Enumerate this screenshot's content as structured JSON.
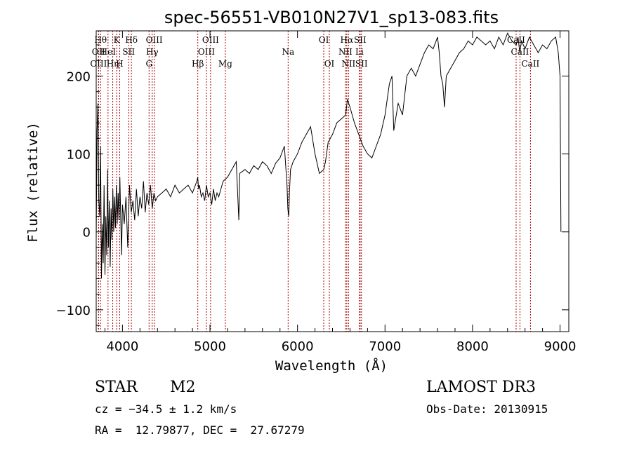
{
  "chart_data": {
    "type": "line",
    "title": "spec-56551-VB010N27V1_sp13-083.fits",
    "xlabel": "Wavelength (Å)",
    "ylabel": "Flux (relative)",
    "xlim": [
      3700,
      9100
    ],
    "ylim": [
      -128,
      258
    ],
    "x_ticks": [
      4000,
      5000,
      6000,
      7000,
      8000,
      9000
    ],
    "y_ticks": [
      -100,
      0,
      100,
      200
    ],
    "line_color": "#000000",
    "marker_color": "#aa0000",
    "series": [
      {
        "name": "flux",
        "x": [
          3700,
          3710,
          3720,
          3730,
          3740,
          3750,
          3760,
          3770,
          3780,
          3790,
          3800,
          3810,
          3820,
          3830,
          3840,
          3850,
          3860,
          3870,
          3880,
          3890,
          3900,
          3910,
          3920,
          3930,
          3940,
          3950,
          3960,
          3970,
          3980,
          3990,
          4000,
          4020,
          4040,
          4060,
          4080,
          4100,
          4120,
          4140,
          4160,
          4180,
          4200,
          4220,
          4240,
          4260,
          4280,
          4300,
          4320,
          4340,
          4360,
          4380,
          4400,
          4450,
          4500,
          4550,
          4600,
          4650,
          4700,
          4750,
          4800,
          4850,
          4860,
          4870,
          4880,
          4900,
          4920,
          4940,
          4960,
          4980,
          5000,
          5020,
          5040,
          5060,
          5080,
          5100,
          5150,
          5200,
          5250,
          5300,
          5320,
          5330,
          5340,
          5400,
          5450,
          5500,
          5550,
          5600,
          5650,
          5700,
          5750,
          5800,
          5850,
          5880,
          5890,
          5900,
          5910,
          5920,
          5950,
          6000,
          6050,
          6100,
          6150,
          6200,
          6250,
          6300,
          6320,
          6350,
          6400,
          6450,
          6500,
          6550,
          6570,
          6600,
          6650,
          6700,
          6750,
          6800,
          6850,
          6900,
          6950,
          7000,
          7050,
          7080,
          7100,
          7150,
          7200,
          7250,
          7300,
          7350,
          7400,
          7450,
          7500,
          7550,
          7600,
          7620,
          7640,
          7660,
          7680,
          7700,
          7750,
          7800,
          7850,
          7900,
          7950,
          8000,
          8050,
          8100,
          8150,
          8200,
          8250,
          8300,
          8350,
          8400,
          8450,
          8500,
          8520,
          8540,
          8560,
          8580,
          8600,
          8650,
          8700,
          8750,
          8800,
          8850,
          8900,
          8950,
          8980,
          9000,
          9010
        ],
        "y": [
          -10,
          130,
          165,
          40,
          20,
          110,
          -60,
          10,
          -40,
          60,
          -55,
          20,
          -30,
          80,
          -20,
          40,
          -45,
          30,
          -10,
          55,
          0,
          45,
          5,
          60,
          10,
          50,
          15,
          70,
          20,
          -30,
          35,
          10,
          45,
          -20,
          60,
          25,
          40,
          15,
          55,
          20,
          45,
          30,
          65,
          25,
          50,
          35,
          60,
          30,
          50,
          40,
          45,
          50,
          55,
          45,
          60,
          50,
          55,
          60,
          50,
          65,
          70,
          55,
          60,
          45,
          50,
          40,
          60,
          45,
          50,
          35,
          55,
          40,
          50,
          45,
          65,
          70,
          80,
          90,
          40,
          15,
          75,
          80,
          75,
          85,
          80,
          90,
          85,
          75,
          88,
          95,
          110,
          60,
          30,
          20,
          55,
          80,
          90,
          100,
          115,
          125,
          135,
          100,
          75,
          80,
          90,
          115,
          125,
          140,
          145,
          150,
          170,
          160,
          140,
          125,
          110,
          100,
          95,
          110,
          125,
          150,
          190,
          200,
          130,
          165,
          150,
          200,
          210,
          200,
          215,
          230,
          240,
          235,
          250,
          230,
          200,
          190,
          160,
          200,
          210,
          220,
          230,
          235,
          245,
          240,
          250,
          245,
          240,
          245,
          235,
          250,
          240,
          255,
          245,
          240,
          250,
          230,
          245,
          240,
          235,
          250,
          240,
          230,
          240,
          235,
          245,
          250,
          230,
          200,
          0
        ]
      }
    ],
    "lines": [
      {
        "x": 3750,
        "top": "Hθ"
      },
      {
        "x": 3727,
        "mid": "OII"
      },
      {
        "x": 3727,
        "low": "OIII"
      },
      {
        "x": 3835,
        "mid": "HeI"
      },
      {
        "x": 3889,
        "low": "Hη"
      },
      {
        "x": 3934,
        "top": "K"
      },
      {
        "x": 3969,
        "low": "H"
      },
      {
        "x": 4071,
        "mid": "SII"
      },
      {
        "x": 4102,
        "top": "Hδ"
      },
      {
        "x": 4304,
        "low": "G"
      },
      {
        "x": 4340,
        "mid": "Hγ"
      },
      {
        "x": 4363,
        "top": "OIII"
      },
      {
        "x": 4861,
        "low": "Hβ"
      },
      {
        "x": 4959,
        "mid": "OIII"
      },
      {
        "x": 5007,
        "top": "OIII"
      },
      {
        "x": 5175,
        "low": "Mg"
      },
      {
        "x": 5893,
        "mid": "Na"
      },
      {
        "x": 6300,
        "top": "OI"
      },
      {
        "x": 6364,
        "low": "OI"
      },
      {
        "x": 6548,
        "mid": "NII"
      },
      {
        "x": 6563,
        "top": "Hα"
      },
      {
        "x": 6583,
        "low": "NII"
      },
      {
        "x": 6708,
        "mid": "Li"
      },
      {
        "x": 6716,
        "top": "SII"
      },
      {
        "x": 6731,
        "low": "SII"
      },
      {
        "x": 8498,
        "top": "CaII"
      },
      {
        "x": 8542,
        "mid": "CaII"
      },
      {
        "x": 8662,
        "low": "CaII"
      }
    ]
  },
  "info": {
    "class": "STAR",
    "subclass": "M2",
    "survey": "LAMOST DR3",
    "cz": "cz = −34.5 ± 1.2 km/s",
    "obs_date": "Obs-Date: 20130915",
    "radec": "RA =  12.79877, DEC =  27.67279"
  }
}
